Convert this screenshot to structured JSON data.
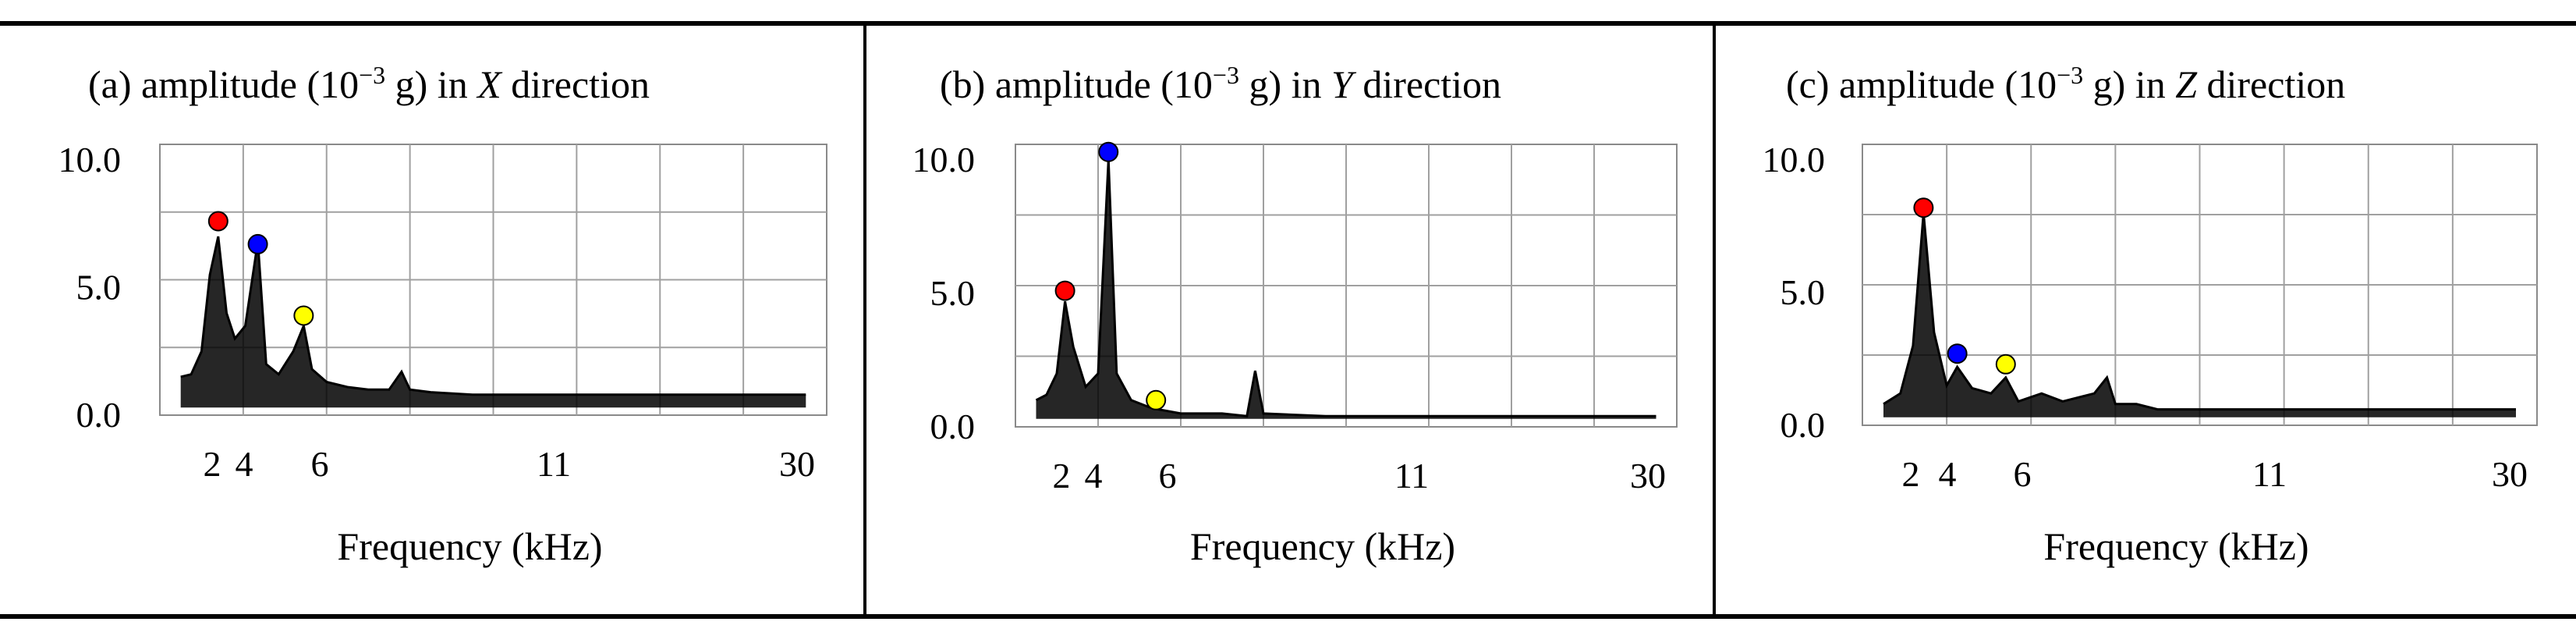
{
  "chart_data": [
    {
      "type": "line",
      "panel_label": "(a)",
      "title_parts": [
        "amplitude (10",
        "−3",
        " g) in ",
        "X",
        " direction"
      ],
      "xlabel": "Frequency (kHz)",
      "ylabel": "",
      "y_ticks": [
        "0.0",
        "5.0",
        "10.0"
      ],
      "x_ticks": [
        {
          "label": "2",
          "value": 2
        },
        {
          "label": "4",
          "value": 4
        },
        {
          "label": "6",
          "value": 6
        },
        {
          "label": "11",
          "value": 11
        },
        {
          "label": "30",
          "value": 30
        }
      ],
      "ylim": [
        0,
        10
      ],
      "grid": true,
      "series": [
        {
          "color": "#000000",
          "points": [
            [
              0,
              1.5
            ],
            [
              0.5,
              1.6
            ],
            [
              1,
              2.5
            ],
            [
              1.4,
              5.5
            ],
            [
              1.8,
              7.0
            ],
            [
              2.2,
              4.0
            ],
            [
              2.6,
              3.0
            ],
            [
              3.1,
              3.5
            ],
            [
              3.7,
              6.8
            ],
            [
              4.1,
              2.0
            ],
            [
              4.7,
              1.6
            ],
            [
              5.4,
              2.5
            ],
            [
              5.9,
              3.5
            ],
            [
              6.3,
              1.8
            ],
            [
              7,
              1.3
            ],
            [
              8,
              1.1
            ],
            [
              9,
              1.0
            ],
            [
              10,
              1.0
            ],
            [
              10.6,
              1.7
            ],
            [
              11,
              1.0
            ],
            [
              12,
              0.9
            ],
            [
              14,
              0.8
            ],
            [
              20,
              0.8
            ],
            [
              25,
              0.8
            ],
            [
              30,
              0.8
            ]
          ]
        }
      ],
      "markers": [
        {
          "x": 1.8,
          "y": 7.6,
          "color": "#ff0000"
        },
        {
          "x": 3.7,
          "y": 6.7,
          "color": "#0000ff"
        },
        {
          "x": 5.9,
          "y": 3.9,
          "color": "#ffff00"
        }
      ]
    },
    {
      "type": "line",
      "panel_label": "(b)",
      "title_parts": [
        "amplitude (10",
        "−3",
        " g) in ",
        "Y",
        " direction"
      ],
      "xlabel": "Frequency (kHz)",
      "ylabel": "",
      "y_ticks": [
        "0.0",
        "5.0",
        "10.0"
      ],
      "x_ticks": [
        {
          "label": "2",
          "value": 2
        },
        {
          "label": "4",
          "value": 4
        },
        {
          "label": "6",
          "value": 6
        },
        {
          "label": "11",
          "value": 11
        },
        {
          "label": "30",
          "value": 30
        }
      ],
      "ylim": [
        0,
        10
      ],
      "grid": true,
      "series": [
        {
          "color": "#000000",
          "points": [
            [
              0,
              1.0
            ],
            [
              0.5,
              1.2
            ],
            [
              1,
              2.0
            ],
            [
              1.4,
              4.7
            ],
            [
              1.8,
              3.0
            ],
            [
              2.4,
              1.5
            ],
            [
              3.0,
              2.0
            ],
            [
              3.5,
              10.0
            ],
            [
              3.9,
              2.0
            ],
            [
              4.6,
              1.0
            ],
            [
              5.6,
              0.7
            ],
            [
              7,
              0.5
            ],
            [
              9,
              0.5
            ],
            [
              10.2,
              0.4
            ],
            [
              10.6,
              2.1
            ],
            [
              11,
              0.5
            ],
            [
              14,
              0.4
            ],
            [
              22,
              0.4
            ],
            [
              30,
              0.4
            ]
          ]
        }
      ],
      "markers": [
        {
          "x": 1.4,
          "y": 5.1,
          "color": "#ff0000"
        },
        {
          "x": 3.5,
          "y": 10.3,
          "color": "#0000ff"
        },
        {
          "x": 5.8,
          "y": 1.0,
          "color": "#ffff00"
        }
      ]
    },
    {
      "type": "line",
      "panel_label": "(c)",
      "title_parts": [
        "amplitude (10",
        "−3",
        " g) in ",
        "Z",
        " direction"
      ],
      "xlabel": "Frequency (kHz)",
      "ylabel": "",
      "y_ticks": [
        "0.0",
        "5.0",
        "10.0"
      ],
      "x_ticks": [
        {
          "label": "2",
          "value": 2
        },
        {
          "label": "4",
          "value": 4
        },
        {
          "label": "6",
          "value": 6
        },
        {
          "label": "11",
          "value": 11
        },
        {
          "label": "30",
          "value": 30
        }
      ],
      "ylim": [
        0,
        10
      ],
      "grid": true,
      "series": [
        {
          "color": "#000000",
          "points": [
            [
              0,
              0.8
            ],
            [
              0.8,
              1.2
            ],
            [
              1.4,
              3.0
            ],
            [
              1.9,
              8.0
            ],
            [
              2.4,
              3.5
            ],
            [
              3.0,
              1.5
            ],
            [
              3.5,
              2.2
            ],
            [
              4.2,
              1.4
            ],
            [
              5.1,
              1.2
            ],
            [
              5.8,
              1.8
            ],
            [
              6.4,
              0.9
            ],
            [
              7.5,
              1.2
            ],
            [
              8.5,
              0.9
            ],
            [
              10,
              1.2
            ],
            [
              10.6,
              1.8
            ],
            [
              11,
              0.8
            ],
            [
              12,
              0.8
            ],
            [
              13,
              0.6
            ],
            [
              20,
              0.6
            ],
            [
              30,
              0.6
            ]
          ]
        }
      ],
      "markers": [
        {
          "x": 1.9,
          "y": 8.2,
          "color": "#ff0000"
        },
        {
          "x": 3.5,
          "y": 2.7,
          "color": "#0000ff"
        },
        {
          "x": 5.8,
          "y": 2.3,
          "color": "#ffff00"
        }
      ]
    }
  ]
}
